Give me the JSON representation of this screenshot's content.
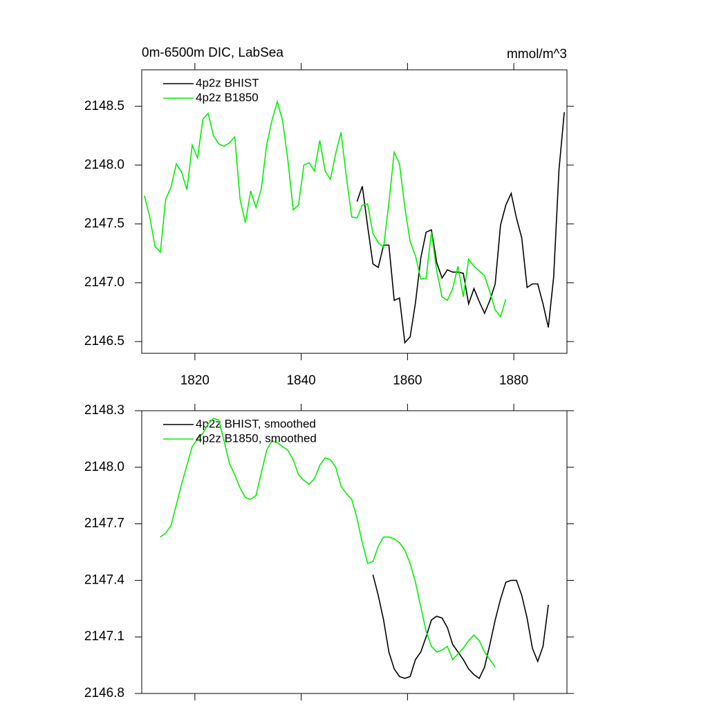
{
  "chart_data": [
    {
      "type": "line",
      "title": "0m-6500m DIC, LabSea",
      "units": "mmol/m^3",
      "xlim": [
        1810,
        1890
      ],
      "xticks": [
        1820,
        1840,
        1860,
        1880
      ],
      "ylim": [
        2146.4,
        2148.81
      ],
      "yticks": [
        2146.5,
        {
          "value": 2147,
          "label": "2147.0"
        },
        2147.5,
        {
          "value": 2148,
          "label": "2148.0"
        },
        2148.5
      ],
      "legend": "top-left",
      "series": [
        {
          "name": "4p2z BHIST",
          "color": "#000000",
          "x": [
            1850.5,
            1851.5,
            1852.5,
            1853.5,
            1854.5,
            1855.5,
            1856.5,
            1857.5,
            1858.5,
            1859.5,
            1860.5,
            1861.5,
            1862.5,
            1863.5,
            1864.5,
            1865.5,
            1866.5,
            1867.5,
            1868.5,
            1869.5,
            1870.5,
            1871.5,
            1872.5,
            1873.5,
            1874.5,
            1875.5,
            1876.5,
            1877.5,
            1878.5,
            1879.5,
            1880.5,
            1881.5,
            1882.5,
            1883.5,
            1884.5,
            1885.5,
            1886.5,
            1887.5,
            1888.5,
            1889.5
          ],
          "values": [
            2147.69,
            2147.82,
            2147.48,
            2147.16,
            2147.13,
            2147.32,
            2147.32,
            2146.85,
            2146.87,
            2146.49,
            2146.54,
            2146.83,
            2147.21,
            2147.43,
            2147.45,
            2147.17,
            2147.04,
            2147.11,
            2147.09,
            2147.09,
            2147.08,
            2146.82,
            2146.95,
            2146.84,
            2146.74,
            2146.85,
            2146.99,
            2147.49,
            2147.66,
            2147.76,
            2147.55,
            2147.38,
            2146.96,
            2146.99,
            2146.99,
            2146.82,
            2146.62,
            2147.05,
            2147.96,
            2148.45
          ]
        },
        {
          "name": "4p2z B1850",
          "color": "#00ee00",
          "x": [
            1810.5,
            1811.5,
            1812.5,
            1813.5,
            1814.5,
            1815.5,
            1816.5,
            1817.5,
            1818.5,
            1819.5,
            1820.5,
            1821.5,
            1822.5,
            1823.5,
            1824.5,
            1825.5,
            1826.5,
            1827.5,
            1828.5,
            1829.5,
            1830.5,
            1831.5,
            1832.5,
            1833.5,
            1834.5,
            1835.5,
            1836.5,
            1837.5,
            1838.5,
            1839.5,
            1840.5,
            1841.5,
            1842.5,
            1843.5,
            1844.5,
            1845.5,
            1846.5,
            1847.5,
            1848.5,
            1849.5,
            1850.5,
            1851.5,
            1852.5,
            1853.5,
            1854.5,
            1855.5,
            1856.5,
            1857.5,
            1858.5,
            1859.5,
            1860.5,
            1861.5,
            1862.5,
            1863.5,
            1864.5,
            1865.5,
            1866.5,
            1867.5,
            1868.5,
            1869.5,
            1870.5,
            1871.5,
            1872.5,
            1873.5,
            1874.5,
            1875.5,
            1876.5,
            1877.5,
            1878.5
          ],
          "values": [
            2147.74,
            2147.56,
            2147.31,
            2147.26,
            2147.71,
            2147.81,
            2148.01,
            2147.94,
            2147.79,
            2148.17,
            2148.06,
            2148.39,
            2148.44,
            2148.25,
            2148.18,
            2148.16,
            2148.19,
            2148.24,
            2147.71,
            2147.51,
            2147.78,
            2147.64,
            2147.8,
            2148.17,
            2148.38,
            2148.54,
            2148.38,
            2148.04,
            2147.62,
            2147.66,
            2148.0,
            2148.02,
            2147.95,
            2148.21,
            2147.95,
            2147.88,
            2148.1,
            2148.28,
            2147.9,
            2147.56,
            2147.55,
            2147.66,
            2147.67,
            2147.42,
            2147.34,
            2147.3,
            2147.68,
            2148.11,
            2148.01,
            2147.64,
            2147.35,
            2147.23,
            2147.03,
            2147.04,
            2147.43,
            2147.1,
            2146.88,
            2146.85,
            2146.95,
            2147.14,
            2146.88,
            2147.2,
            2147.14,
            2147.1,
            2147.06,
            2146.92,
            2146.77,
            2146.71,
            2146.86
          ]
        }
      ]
    },
    {
      "type": "line",
      "xlim": [
        1810,
        1890
      ],
      "xticks": [
        1820,
        1840,
        1860,
        1880
      ],
      "ylim": [
        2146.8,
        2148.3
      ],
      "yticks": [
        2146.8,
        2147.1,
        2147.4,
        2147.7,
        {
          "value": 2148,
          "label": "2148.0"
        },
        2148.3
      ],
      "legend": "top-left",
      "series": [
        {
          "name": "4p2z BHIST, smoothed",
          "color": "#000000",
          "x": [
            1853.5,
            1854.5,
            1855.5,
            1856.5,
            1857.5,
            1858.5,
            1859.5,
            1860.5,
            1861.5,
            1862.5,
            1863.5,
            1864.5,
            1865.5,
            1866.5,
            1867.5,
            1868.5,
            1869.5,
            1870.5,
            1871.5,
            1872.5,
            1873.5,
            1874.5,
            1875.5,
            1876.5,
            1877.5,
            1878.5,
            1879.5,
            1880.5,
            1881.5,
            1882.5,
            1883.5,
            1884.5,
            1885.5,
            1886.5
          ],
          "values": [
            2147.43,
            2147.32,
            2147.19,
            2147.02,
            2146.93,
            2146.89,
            2146.88,
            2146.89,
            2146.98,
            2147.02,
            2147.1,
            2147.19,
            2147.21,
            2147.2,
            2147.15,
            2147.06,
            2147.02,
            2146.98,
            2146.93,
            2146.9,
            2146.88,
            2146.94,
            2147.06,
            2147.19,
            2147.3,
            2147.39,
            2147.4,
            2147.4,
            2147.32,
            2147.2,
            2147.04,
            2146.97,
            2147.05,
            2147.27
          ]
        },
        {
          "name": "4p2z B1850, smoothed",
          "color": "#00ee00",
          "x": [
            1813.5,
            1814.5,
            1815.5,
            1816.5,
            1817.5,
            1818.5,
            1819.5,
            1820.5,
            1821.5,
            1822.5,
            1823.5,
            1824.5,
            1825.5,
            1826.5,
            1827.5,
            1828.5,
            1829.5,
            1830.5,
            1831.5,
            1832.5,
            1833.5,
            1834.5,
            1835.5,
            1836.5,
            1837.5,
            1838.5,
            1839.5,
            1840.5,
            1841.5,
            1842.5,
            1843.5,
            1844.5,
            1845.5,
            1846.5,
            1847.5,
            1848.5,
            1849.5,
            1850.5,
            1851.5,
            1852.5,
            1853.5,
            1854.5,
            1855.5,
            1856.5,
            1857.5,
            1858.5,
            1859.5,
            1860.5,
            1861.5,
            1862.5,
            1863.5,
            1864.5,
            1865.5,
            1866.5,
            1867.5,
            1868.5,
            1869.5,
            1870.5,
            1871.5,
            1872.5,
            1873.5,
            1874.5,
            1875.5,
            1876.5
          ],
          "values": [
            2147.63,
            2147.65,
            2147.69,
            2147.8,
            2147.91,
            2148.01,
            2148.11,
            2148.15,
            2148.18,
            2148.23,
            2148.26,
            2148.25,
            2148.14,
            2148.02,
            2147.96,
            2147.89,
            2147.84,
            2147.83,
            2147.85,
            2147.97,
            2148.09,
            2148.14,
            2148.13,
            2148.11,
            2148.09,
            2148.04,
            2147.96,
            2147.93,
            2147.91,
            2147.94,
            2148.01,
            2148.05,
            2148.04,
            2148.0,
            2147.9,
            2147.86,
            2147.83,
            2147.73,
            2147.6,
            2147.49,
            2147.5,
            2147.58,
            2147.63,
            2147.63,
            2147.62,
            2147.6,
            2147.56,
            2147.49,
            2147.39,
            2147.26,
            2147.13,
            2147.05,
            2147.02,
            2147.03,
            2147.05,
            2146.98,
            2147.01,
            2147.04,
            2147.08,
            2147.11,
            2147.08,
            2147.02,
            2146.98,
            2146.94
          ]
        }
      ]
    }
  ]
}
